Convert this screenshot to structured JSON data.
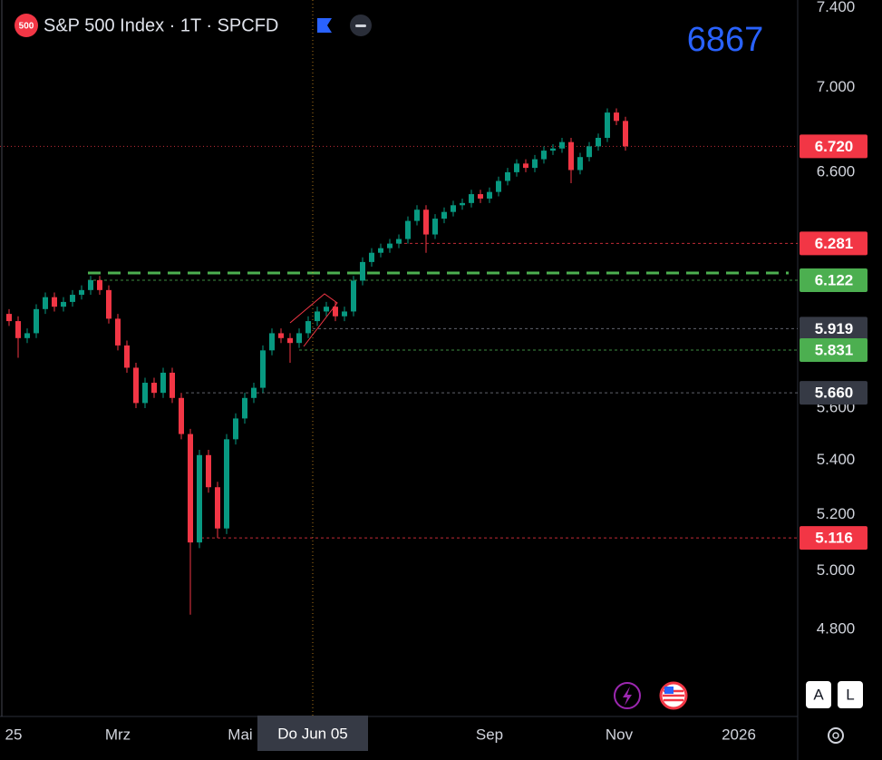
{
  "chart_data": {
    "type": "candlestick",
    "title": "S&P 500 Index · 1T · SPCFD",
    "badge": "500",
    "annotation": "6867",
    "buttons": [
      "A",
      "L"
    ],
    "up_color": "#089981",
    "down_color": "#f23645",
    "log_scale": true,
    "ylim": [
      4518,
      7441
    ],
    "yticks": [
      {
        "value": 7400,
        "label": "7.400"
      },
      {
        "value": 7000,
        "label": "7.000"
      },
      {
        "value": 6600,
        "label": "6.600"
      },
      {
        "value": 5600,
        "label": "5.600"
      },
      {
        "value": 5400,
        "label": "5.400"
      },
      {
        "value": 5200,
        "label": "5.200"
      },
      {
        "value": 5000,
        "label": "5.000"
      },
      {
        "value": 4800,
        "label": "4.800"
      }
    ],
    "xticks": [
      {
        "value": 0.5,
        "label": "25"
      },
      {
        "value": 12,
        "label": "Mrz"
      },
      {
        "value": 25.5,
        "label": "Mai"
      },
      {
        "value": 53,
        "label": "Sep"
      },
      {
        "value": 67.3,
        "label": "Nov"
      },
      {
        "value": 80.5,
        "label": "2026"
      }
    ],
    "crosshair": {
      "x": 33.5,
      "label": "Do Jun 05"
    },
    "levels": [
      {
        "value": 6720,
        "label": "6.720",
        "color": "#f23645"
      },
      {
        "value": 6281,
        "label": "6.281",
        "color": "#f23645"
      },
      {
        "value": 6122,
        "label": "6.122",
        "color": "#4caf50"
      },
      {
        "value": 5919,
        "label": "5.919",
        "color": "#363a45"
      },
      {
        "value": 5831,
        "label": "5.831",
        "color": "#4caf50"
      },
      {
        "value": 5660,
        "label": "5.660",
        "color": "#363a45"
      },
      {
        "value": 5116,
        "label": "5.116",
        "color": "#f23645"
      }
    ],
    "candles": [
      [
        5980,
        6000,
        5930,
        5950
      ],
      [
        5950,
        5970,
        5800,
        5880
      ],
      [
        5880,
        5920,
        5860,
        5900
      ],
      [
        5900,
        6020,
        5880,
        6000
      ],
      [
        6000,
        6070,
        5980,
        6050
      ],
      [
        6050,
        6070,
        5990,
        6010
      ],
      [
        6010,
        6050,
        5990,
        6030
      ],
      [
        6030,
        6080,
        6010,
        6060
      ],
      [
        6060,
        6100,
        6040,
        6080
      ],
      [
        6080,
        6140,
        6060,
        6122
      ],
      [
        6122,
        6140,
        6060,
        6080
      ],
      [
        6080,
        6100,
        5940,
        5960
      ],
      [
        5960,
        5980,
        5830,
        5850
      ],
      [
        5850,
        5870,
        5740,
        5760
      ],
      [
        5760,
        5780,
        5600,
        5620
      ],
      [
        5620,
        5720,
        5600,
        5700
      ],
      [
        5700,
        5720,
        5640,
        5660
      ],
      [
        5660,
        5760,
        5640,
        5740
      ],
      [
        5740,
        5760,
        5620,
        5640
      ],
      [
        5640,
        5660,
        5480,
        5500
      ],
      [
        5500,
        5520,
        4850,
        5100
      ],
      [
        5100,
        5440,
        5080,
        5420
      ],
      [
        5420,
        5440,
        5280,
        5300
      ],
      [
        5300,
        5320,
        5116,
        5150
      ],
      [
        5150,
        5500,
        5130,
        5480
      ],
      [
        5480,
        5580,
        5460,
        5560
      ],
      [
        5560,
        5660,
        5540,
        5640
      ],
      [
        5640,
        5700,
        5620,
        5680
      ],
      [
        5680,
        5850,
        5660,
        5830
      ],
      [
        5830,
        5920,
        5810,
        5900
      ],
      [
        5900,
        5920,
        5860,
        5880
      ],
      [
        5880,
        5900,
        5780,
        5860
      ],
      [
        5860,
        5920,
        5840,
        5900
      ],
      [
        5900,
        5970,
        5880,
        5950
      ],
      [
        5950,
        6010,
        5930,
        5990
      ],
      [
        5990,
        6030,
        5970,
        6010
      ],
      [
        6010,
        6030,
        5950,
        5970
      ],
      [
        5970,
        6010,
        5950,
        5990
      ],
      [
        5990,
        6140,
        5970,
        6120
      ],
      [
        6120,
        6220,
        6100,
        6200
      ],
      [
        6200,
        6260,
        6180,
        6240
      ],
      [
        6240,
        6280,
        6220,
        6260
      ],
      [
        6260,
        6300,
        6240,
        6280
      ],
      [
        6280,
        6320,
        6260,
        6300
      ],
      [
        6300,
        6400,
        6280,
        6380
      ],
      [
        6380,
        6450,
        6360,
        6430
      ],
      [
        6430,
        6450,
        6240,
        6320
      ],
      [
        6320,
        6410,
        6300,
        6390
      ],
      [
        6390,
        6440,
        6370,
        6420
      ],
      [
        6420,
        6470,
        6400,
        6450
      ],
      [
        6450,
        6480,
        6430,
        6460
      ],
      [
        6460,
        6520,
        6440,
        6500
      ],
      [
        6500,
        6520,
        6460,
        6480
      ],
      [
        6480,
        6530,
        6460,
        6510
      ],
      [
        6510,
        6580,
        6490,
        6560
      ],
      [
        6560,
        6620,
        6540,
        6600
      ],
      [
        6600,
        6660,
        6580,
        6640
      ],
      [
        6640,
        6660,
        6600,
        6620
      ],
      [
        6620,
        6680,
        6600,
        6660
      ],
      [
        6660,
        6720,
        6640,
        6700
      ],
      [
        6700,
        6730,
        6680,
        6710
      ],
      [
        6710,
        6760,
        6690,
        6740
      ],
      [
        6740,
        6760,
        6550,
        6610
      ],
      [
        6610,
        6690,
        6590,
        6670
      ],
      [
        6670,
        6740,
        6650,
        6720
      ],
      [
        6720,
        6780,
        6700,
        6760
      ],
      [
        6760,
        6900,
        6740,
        6880
      ],
      [
        6880,
        6900,
        6820,
        6840
      ],
      [
        6840,
        6860,
        6700,
        6720
      ]
    ]
  }
}
